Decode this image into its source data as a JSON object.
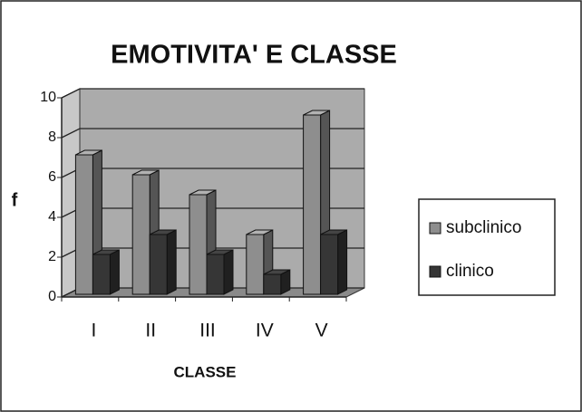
{
  "chart_data": {
    "type": "bar3d",
    "title": "EMOTIVITA' E CLASSE",
    "x_label": "CLASSE",
    "y_label": "f",
    "categories": [
      "I",
      "II",
      "III",
      "IV",
      "V"
    ],
    "series": [
      {
        "name": "subclinico",
        "color": "#8e8e8e",
        "values": [
          7,
          6,
          5,
          3,
          9
        ]
      },
      {
        "name": "clinico",
        "color": "#363636",
        "values": [
          2,
          3,
          2,
          1,
          3
        ]
      }
    ],
    "ylim": [
      0,
      10
    ],
    "yticks": [
      0,
      2,
      4,
      6,
      8,
      10
    ],
    "grid": true,
    "legend": "right"
  }
}
